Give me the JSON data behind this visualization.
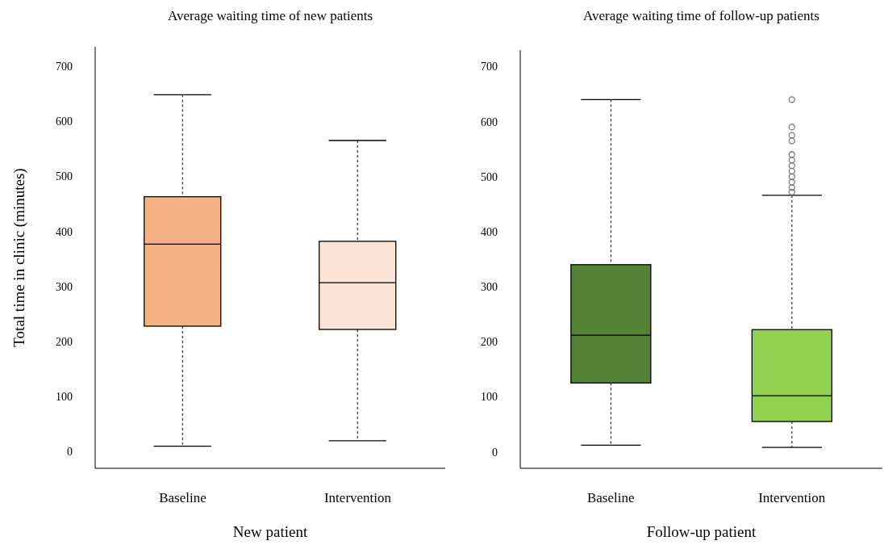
{
  "chart_data": [
    {
      "type": "box",
      "title": "Average waiting time of new patients",
      "xlabel": "New patient",
      "ylabel": "Total time in clinic (minutes)",
      "categories": [
        "Baseline",
        "Intervention"
      ],
      "colors": [
        "#f3b184",
        "#fbe4d6"
      ],
      "ylim": [
        -30,
        735
      ],
      "yticks": [
        0,
        100,
        200,
        300,
        400,
        500,
        600,
        700
      ],
      "boxes": [
        {
          "low": 10,
          "q1": 228,
          "median": 377,
          "q3": 463,
          "high": 648
        },
        {
          "low": 20,
          "q1": 222,
          "median": 307,
          "q3": 382,
          "high": 565
        }
      ]
    },
    {
      "type": "box",
      "title": "Average waiting time of follow-up patients",
      "xlabel": "Follow-up patient",
      "categories": [
        "Baseline",
        "Intervention"
      ],
      "colors": [
        "#548235",
        "#92d050"
      ],
      "ylim": [
        -30,
        730
      ],
      "yticks": [
        0,
        100,
        200,
        300,
        400,
        500,
        600,
        700
      ],
      "boxes": [
        {
          "low": 12,
          "q1": 125,
          "median": 212,
          "q3": 340,
          "high": 640
        },
        {
          "low": 8,
          "q1": 55,
          "median": 102,
          "q3": 222,
          "high": 466,
          "outliers": [
            640,
            590,
            575,
            565,
            540,
            530,
            520,
            510,
            500,
            490,
            480,
            472
          ]
        }
      ]
    }
  ]
}
